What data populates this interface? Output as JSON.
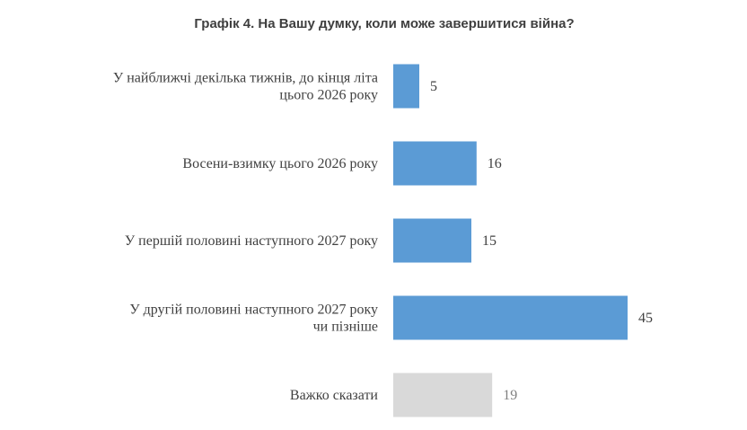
{
  "chart_data": {
    "type": "bar",
    "orientation": "horizontal",
    "title": "Графік 4. На Вашу думку, коли може завершитися війна?",
    "xlabel": "",
    "ylabel": "",
    "xlim": [
      0,
      45
    ],
    "grid": false,
    "categories": [
      [
        "У найближчі декілька тижнів, до кінця літа",
        "цього 2026 року"
      ],
      [
        "Восени-взимку цього 2026 року"
      ],
      [
        "У першій половині наступного 2027 року"
      ],
      [
        "У другій половині наступного 2027 року",
        "чи пізніше"
      ],
      [
        "Важко сказати"
      ]
    ],
    "values": [
      5,
      16,
      15,
      45,
      19
    ],
    "colors": [
      "#5b9bd5",
      "#5b9bd5",
      "#5b9bd5",
      "#5b9bd5",
      "#d9d9d9"
    ],
    "label_colors": [
      "#404040",
      "#404040",
      "#404040",
      "#404040",
      "#808080"
    ]
  }
}
